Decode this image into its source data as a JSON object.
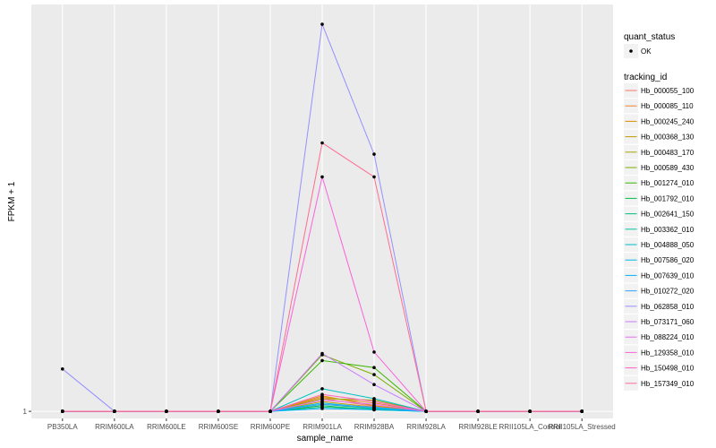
{
  "chart_data": {
    "type": "line",
    "xlabel": "sample_name",
    "ylabel": "FPKM + 1",
    "y_tick_labels": [
      "1"
    ],
    "y_tick_values": [
      1
    ],
    "ylim": [
      0.75,
      15.4
    ],
    "categories": [
      "PB350LA",
      "RRIM600LA",
      "RRIM600LE",
      "RRIM600SE",
      "RRIM600PE",
      "RRIM901LA",
      "RRIM928BA",
      "RRIM928LA",
      "RRIM928LE",
      "RRII105LA_Control",
      "RRII105LA_Stressed"
    ],
    "grid": true,
    "legend_position": "right",
    "legend": {
      "quant_status_title": "quant_status",
      "quant_status_entries": [
        "OK"
      ],
      "tracking_title": "tracking_id"
    },
    "series": [
      {
        "name": "Hb_000055_100",
        "color": "#F8766D",
        "values": [
          1,
          1,
          1,
          1,
          1,
          1.45,
          1.18,
          1,
          1,
          1,
          1
        ]
      },
      {
        "name": "Hb_000085_110",
        "color": "#EA8331",
        "values": [
          1,
          1,
          1,
          1,
          1,
          1.5,
          1.3,
          1,
          1,
          1,
          1
        ]
      },
      {
        "name": "Hb_000245_240",
        "color": "#D89000",
        "values": [
          1,
          1,
          1,
          1,
          1,
          1.55,
          1.2,
          1,
          1,
          1,
          1
        ]
      },
      {
        "name": "Hb_000368_130",
        "color": "#C09B00",
        "values": [
          1,
          1,
          1,
          1,
          1,
          1.35,
          1.15,
          1,
          1,
          1,
          1
        ]
      },
      {
        "name": "Hb_000483_170",
        "color": "#A3A500",
        "values": [
          1,
          1,
          1,
          1,
          1,
          1.45,
          1.4,
          1,
          1,
          1,
          1
        ]
      },
      {
        "name": "Hb_000589_430",
        "color": "#7CAE00",
        "values": [
          1,
          1,
          1,
          1,
          1,
          3.0,
          2.3,
          1,
          1,
          1,
          1
        ]
      },
      {
        "name": "Hb_001274_010",
        "color": "#39B600",
        "values": [
          1,
          1,
          1,
          1,
          1,
          2.8,
          2.55,
          1,
          1,
          1,
          1
        ]
      },
      {
        "name": "Hb_001792_010",
        "color": "#00BB4E",
        "values": [
          1,
          1,
          1,
          1,
          1,
          1.2,
          1.05,
          1,
          1,
          1,
          1
        ]
      },
      {
        "name": "Hb_002641_150",
        "color": "#00BF7D",
        "values": [
          1,
          1,
          1,
          1,
          1,
          1.15,
          1.08,
          1,
          1,
          1,
          1
        ]
      },
      {
        "name": "Hb_003362_010",
        "color": "#00C1A3",
        "values": [
          1,
          1,
          1,
          1,
          1,
          1.25,
          1.1,
          1,
          1,
          1,
          1
        ]
      },
      {
        "name": "Hb_004888_050",
        "color": "#00BFC4",
        "values": [
          1,
          1,
          1,
          1,
          1,
          1.8,
          1.45,
          1,
          1,
          1,
          1
        ]
      },
      {
        "name": "Hb_007586_020",
        "color": "#00BAE0",
        "values": [
          1,
          1,
          1,
          1,
          1,
          1.3,
          1.12,
          1,
          1,
          1,
          1
        ]
      },
      {
        "name": "Hb_007639_010",
        "color": "#00B0F6",
        "values": [
          1,
          1,
          1,
          1,
          1,
          1.1,
          1.06,
          1,
          1,
          1,
          1
        ]
      },
      {
        "name": "Hb_010272_020",
        "color": "#35A2FF",
        "values": [
          1,
          1,
          1,
          1,
          1,
          1.25,
          1.15,
          1,
          1,
          1,
          1
        ]
      },
      {
        "name": "Hb_062858_010",
        "color": "#9590FF",
        "values": [
          2.5,
          1,
          1,
          1,
          1,
          14.7,
          10.1,
          1,
          1,
          1,
          1
        ]
      },
      {
        "name": "Hb_073171_060",
        "color": "#C77CFF",
        "values": [
          1,
          1,
          1,
          1,
          1,
          3.05,
          1.95,
          1,
          1,
          1,
          1
        ]
      },
      {
        "name": "Hb_088224_010",
        "color": "#E76BF3",
        "values": [
          1,
          1,
          1,
          1,
          1,
          1.4,
          1.25,
          1,
          1,
          1,
          1
        ]
      },
      {
        "name": "Hb_129358_010",
        "color": "#FA62DB",
        "values": [
          1,
          1,
          1,
          1,
          1,
          9.3,
          3.1,
          1,
          1,
          1,
          1
        ]
      },
      {
        "name": "Hb_150498_010",
        "color": "#FF62BC",
        "values": [
          1,
          1,
          1,
          1,
          1,
          1.6,
          1.35,
          1,
          1,
          1,
          1
        ]
      },
      {
        "name": "Hb_157349_010",
        "color": "#FF6C91",
        "values": [
          1,
          1,
          1,
          1,
          1,
          10.5,
          9.3,
          1,
          1,
          1,
          1
        ]
      }
    ]
  }
}
